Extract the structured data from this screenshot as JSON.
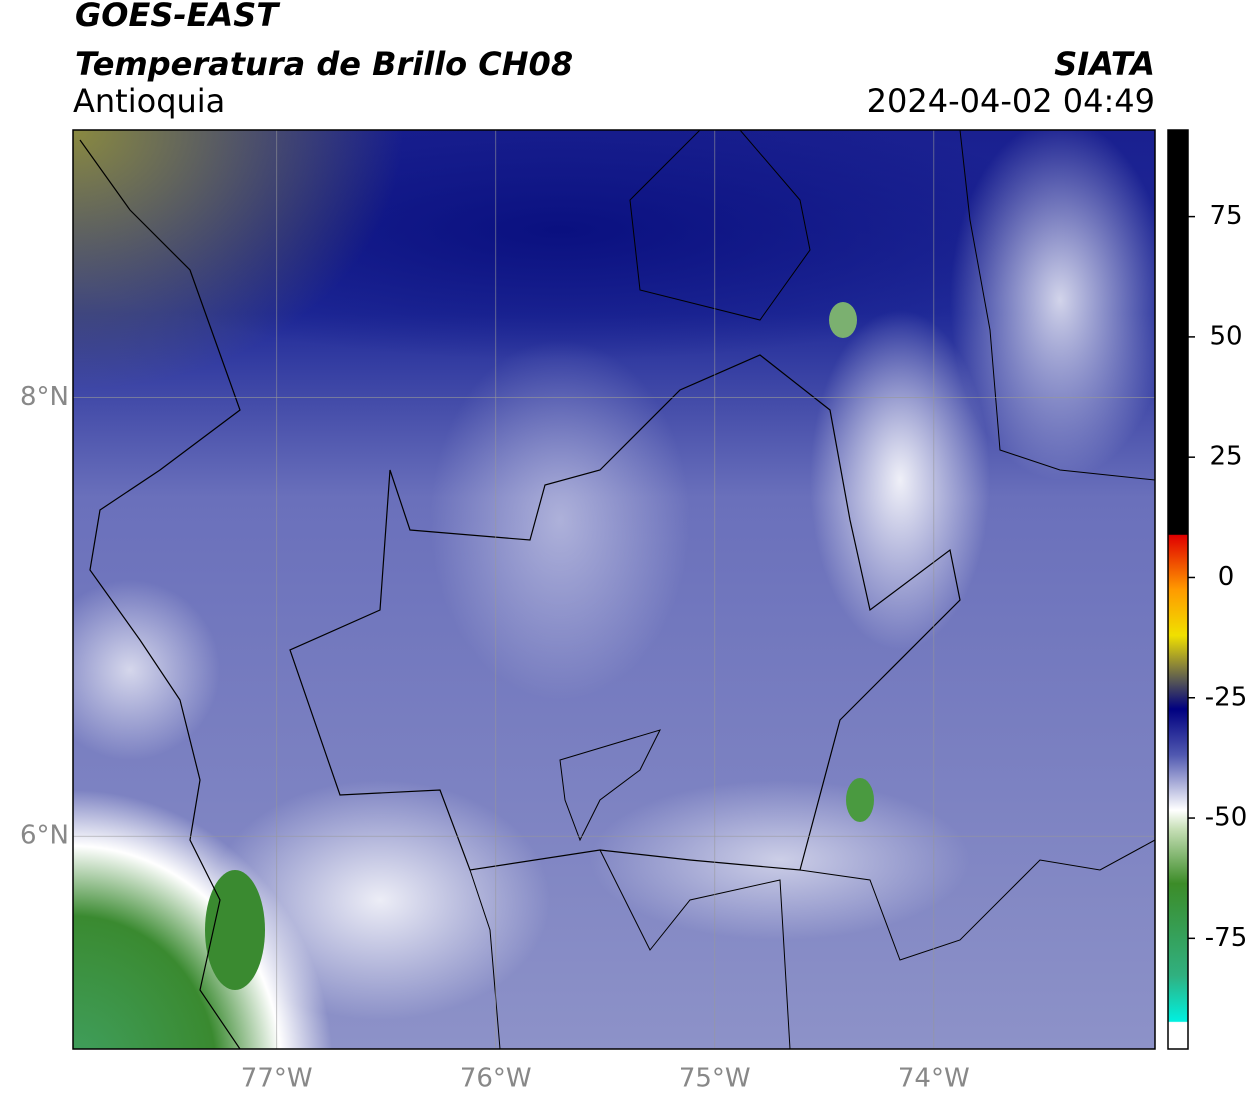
{
  "chart_data": {
    "type": "map",
    "title": "GOES-EAST",
    "subtitle": "Temperatura de Brillo CH08",
    "region": "Antioquia",
    "source": "SIATA",
    "timestamp": "2024-04-02 04:49",
    "xlim": [
      -77.93,
      -72.99
    ],
    "ylim": [
      5.03,
      9.22
    ],
    "xticks": [
      {
        "value": -77,
        "label": "77°W"
      },
      {
        "value": -76,
        "label": "76°W"
      },
      {
        "value": -75,
        "label": "75°W"
      },
      {
        "value": -74,
        "label": "74°W"
      }
    ],
    "yticks": [
      {
        "value": 6,
        "label": "6°N"
      },
      {
        "value": 8,
        "label": "8°N"
      }
    ],
    "grid": true,
    "colorbar": {
      "lim": [
        -98,
        93
      ],
      "ticks": [
        -75,
        -50,
        -25,
        0,
        25,
        50,
        75
      ]
    }
  }
}
